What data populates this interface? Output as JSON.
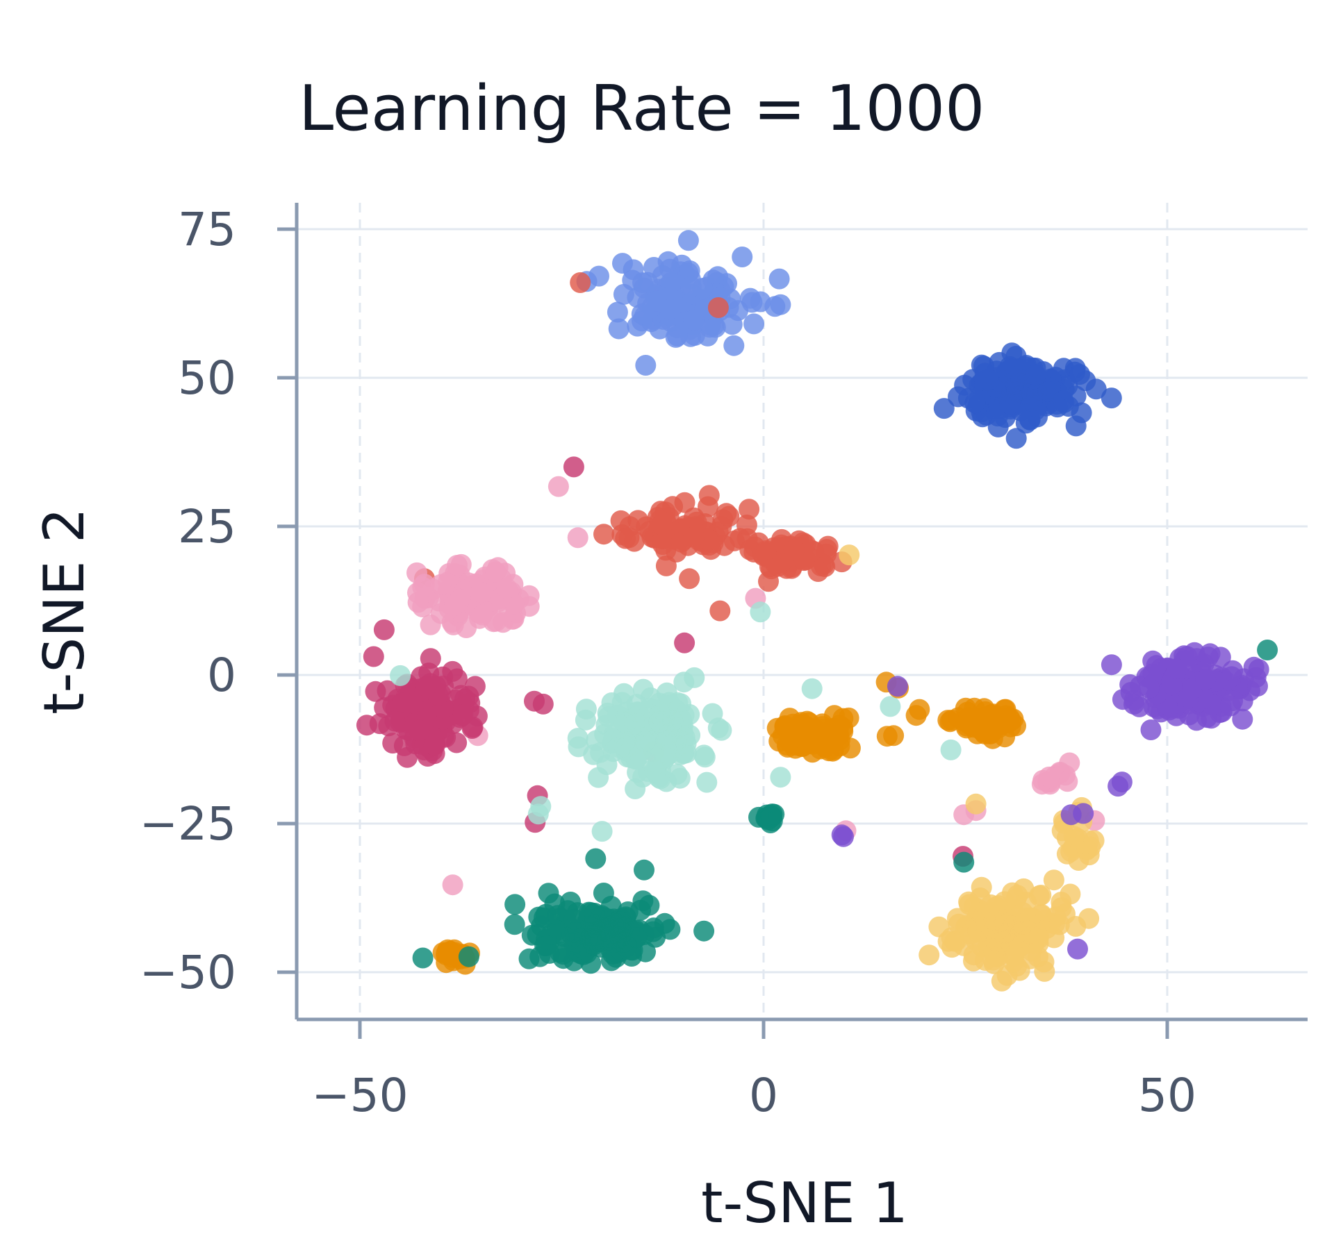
{
  "chart_data": {
    "type": "scatter",
    "title": "Learning Rate = 1000",
    "xlabel": "t-SNE 1",
    "ylabel": "t-SNE 2",
    "xlim": [
      -57,
      67
    ],
    "ylim": [
      -58,
      80
    ],
    "xticks": [
      -50,
      0,
      50
    ],
    "yticks": [
      -50,
      -25,
      0,
      25,
      50,
      75
    ],
    "xtick_labels": [
      "−50",
      "0",
      "50"
    ],
    "ytick_labels": [
      "−50",
      "−25",
      "0",
      "25",
      "50",
      "75"
    ],
    "grid": true,
    "legend": "none",
    "series": [
      {
        "color": "#6b8fe8",
        "clusters": [
          {
            "cx": -10,
            "cy": 63,
            "sx": 6.5,
            "sy": 4.8,
            "n": 130
          }
        ],
        "points": [
          [
            -21.9,
            66.2
          ],
          [
            -20.4,
            67.1
          ],
          [
            2.1,
            62.3
          ],
          [
            1.4,
            62.0
          ],
          [
            -14.6,
            52.1
          ],
          [
            -9.3,
            73.1
          ]
        ]
      },
      {
        "color": "#2f5bc9",
        "clusters": [
          {
            "cx": 32,
            "cy": 48,
            "sx": 5.0,
            "sy": 4.0,
            "n": 170
          }
        ],
        "points": [
          [
            43.1,
            46.6
          ],
          [
            41.2,
            48.1
          ],
          [
            24.1,
            46.8
          ],
          [
            31.3,
            39.8
          ]
        ]
      },
      {
        "color": "#e05a4a",
        "clusters": [
          {
            "cx": -10,
            "cy": 24,
            "sx": 5.5,
            "sy": 3.0,
            "n": 80
          },
          {
            "cx": 3,
            "cy": 20,
            "sx": 4.8,
            "sy": 2.3,
            "n": 60
          }
        ],
        "points": [
          [
            -5.4,
            10.8
          ],
          [
            -1.8,
            27.9
          ],
          [
            -9.2,
            16.2
          ],
          [
            -22.7,
            66.0
          ],
          [
            -5.6,
            61.8
          ],
          [
            -42,
            16.2
          ]
        ]
      },
      {
        "color": "#f09fbf",
        "clusters": [
          {
            "cx": -36,
            "cy": 13,
            "sx": 5.0,
            "sy": 3.5,
            "n": 110
          },
          {
            "cx": 36,
            "cy": -17,
            "sx": 2.0,
            "sy": 1.5,
            "n": 12
          }
        ],
        "points": [
          [
            -23,
            23.1
          ],
          [
            -1,
            12.9
          ],
          [
            -25.4,
            31.7
          ],
          [
            24.8,
            -23.5
          ],
          [
            26.3,
            -22.8
          ],
          [
            -38.5,
            -35.3
          ],
          [
            -13.6,
            -12.9
          ],
          [
            10.2,
            -26.2
          ],
          [
            41,
            -24.5
          ],
          [
            -35.4,
            -10.2
          ]
        ]
      },
      {
        "color": "#c73a72",
        "clusters": [
          {
            "cx": -42,
            "cy": -7,
            "sx": 4.5,
            "sy": 6.5,
            "n": 130
          }
        ],
        "points": [
          [
            -47,
            7.6
          ],
          [
            -41.8,
            -1.9
          ],
          [
            -27.3,
            -4.9
          ],
          [
            -28.4,
            -4.4
          ],
          [
            -9.8,
            5.4
          ],
          [
            -28,
            -20.3
          ],
          [
            -28.3,
            -24.8
          ],
          [
            24.7,
            -30.5
          ],
          [
            -23.5,
            35
          ],
          [
            -48.3,
            3.1
          ]
        ]
      },
      {
        "color": "#a3e0d4",
        "clusters": [
          {
            "cx": -14,
            "cy": -10,
            "sx": 5.5,
            "sy": 6.0,
            "n": 150
          }
        ],
        "points": [
          [
            -20,
            -26.3
          ],
          [
            -27.6,
            -22.1
          ],
          [
            -27.9,
            -23.4
          ],
          [
            -0.4,
            10.6
          ],
          [
            6,
            -2.3
          ],
          [
            -45,
            -0.1
          ],
          [
            15.7,
            -5.3
          ],
          [
            23.2,
            -12.6
          ],
          [
            2.1,
            -17.2
          ]
        ]
      },
      {
        "color": "#e88c00",
        "clusters": [
          {
            "cx": 6,
            "cy": -10,
            "sx": 3.5,
            "sy": 2.5,
            "n": 90
          },
          {
            "cx": 27,
            "cy": -8,
            "sx": 3.0,
            "sy": 2.0,
            "n": 55
          },
          {
            "cx": -38,
            "cy": -47,
            "sx": 2.0,
            "sy": 1.5,
            "n": 18
          }
        ],
        "points": [
          [
            15.2,
            -1.2
          ],
          [
            16.7,
            -2.2
          ],
          [
            19.3,
            -5.8
          ],
          [
            16.1,
            -10.2
          ],
          [
            15.3,
            -10.3
          ],
          [
            18.9,
            -6.8
          ]
        ]
      },
      {
        "color": "#f5c96a",
        "clusters": [
          {
            "cx": 30,
            "cy": -42,
            "sx": 5.5,
            "sy": 5.0,
            "n": 140
          },
          {
            "cx": 38.5,
            "cy": -27,
            "sx": 2.2,
            "sy": 3.0,
            "n": 22
          }
        ],
        "points": [
          [
            10.6,
            20.2
          ],
          [
            26.3,
            -21.7
          ],
          [
            20.5,
            -47.1
          ],
          [
            29.5,
            -51.5
          ]
        ]
      },
      {
        "color": "#0b8a78",
        "clusters": [
          {
            "cx": -20,
            "cy": -43,
            "sx": 6.0,
            "sy": 4.0,
            "n": 150
          },
          {
            "cx": 0.5,
            "cy": -24,
            "sx": 1.2,
            "sy": 0.6,
            "n": 12
          }
        ],
        "points": [
          [
            -42.2,
            -47.6
          ],
          [
            -36.5,
            -47.4
          ],
          [
            -30.8,
            -38.6
          ],
          [
            62.4,
            4.2
          ],
          [
            24.8,
            -31.5
          ],
          [
            -20.8,
            -30.9
          ],
          [
            -14.8,
            -32.8
          ]
        ]
      },
      {
        "color": "#7b4fd1",
        "clusters": [
          {
            "cx": 53,
            "cy": -2,
            "sx": 5.5,
            "sy": 4.5,
            "n": 150
          }
        ],
        "points": [
          [
            44.4,
            -18
          ],
          [
            43.9,
            -18.7
          ],
          [
            38.1,
            -23.5
          ],
          [
            38.9,
            -46.1
          ],
          [
            9.7,
            -26.9
          ],
          [
            9.9,
            -27.2
          ],
          [
            39.6,
            -23.3
          ],
          [
            16.6,
            -1.9
          ]
        ]
      }
    ]
  }
}
